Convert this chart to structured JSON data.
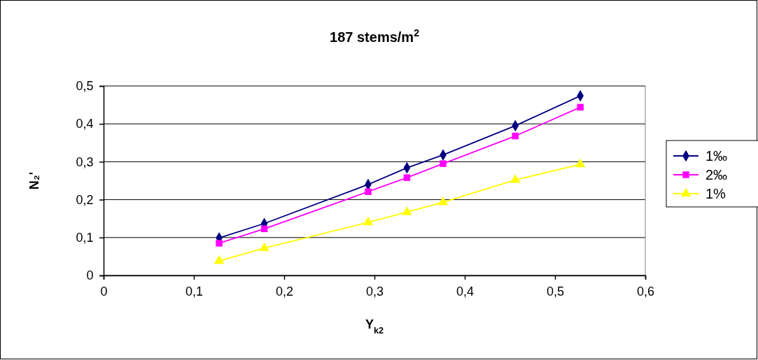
{
  "chart_data": {
    "type": "line",
    "title": "187 stems/m$^{2}$",
    "xlabel": "Y$_{k2}$",
    "ylabel": "N₂'",
    "x": [
      0.128,
      0.178,
      0.293,
      0.336,
      0.376,
      0.456,
      0.528
    ],
    "series": [
      {
        "name": "1‰",
        "color": "#000080",
        "marker": "diamond",
        "values": [
          0.099,
          0.137,
          0.24,
          0.284,
          0.318,
          0.395,
          0.474
        ]
      },
      {
        "name": "2‰",
        "color": "#ff00ff",
        "marker": "square",
        "values": [
          0.085,
          0.123,
          0.221,
          0.258,
          0.295,
          0.368,
          0.444
        ]
      },
      {
        "name": "1%",
        "color": "#ffff00",
        "marker": "triangle",
        "values": [
          0.038,
          0.072,
          0.14,
          0.167,
          0.193,
          0.252,
          0.293
        ]
      }
    ],
    "xlim": [
      0,
      0.6
    ],
    "xticks": [
      0,
      {
        "value": 0.1,
        "label": "0,1"
      },
      {
        "value": 0.2,
        "label": "0,2"
      },
      {
        "value": 0.3,
        "label": "0,3"
      },
      {
        "value": 0.4,
        "label": "0,4"
      },
      {
        "value": 0.5,
        "label": "0,5"
      },
      {
        "value": 0.6,
        "label": "0,6"
      }
    ],
    "ylim": [
      0,
      0.5
    ],
    "yticks": [
      0,
      {
        "value": 0.1,
        "label": "0,1"
      },
      {
        "value": 0.2,
        "label": "0,2"
      },
      {
        "value": 0.3,
        "label": "0,3"
      },
      {
        "value": 0.4,
        "label": "0,4"
      },
      {
        "value": 0.5,
        "label": "0,5"
      }
    ],
    "grid": "y",
    "legend": "right"
  }
}
